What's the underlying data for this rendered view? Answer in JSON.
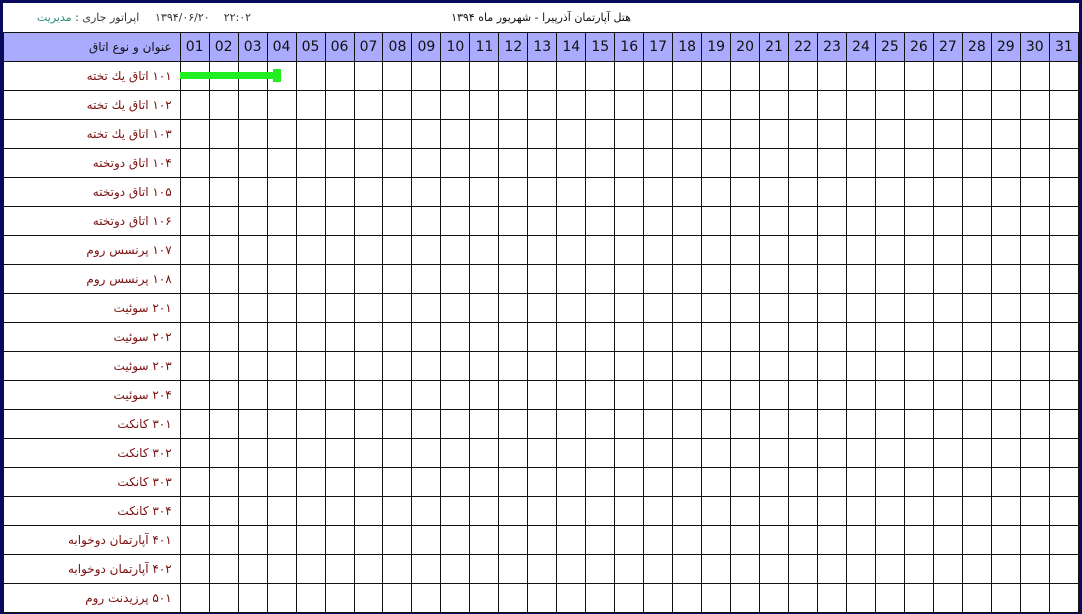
{
  "header": {
    "operator_label": "اپراتور جاری :",
    "operator_role": "مدیریت",
    "date": "۱۳۹۴/۰۶/۲۰",
    "time": "۲۲:۰۲",
    "title": "هتل آپارتمان آذرپیرا - شهریور ماه ۱۳۹۴"
  },
  "grid": {
    "room_column_header": "عنوان و نوع اتاق",
    "days": [
      "01",
      "02",
      "03",
      "04",
      "05",
      "06",
      "07",
      "08",
      "09",
      "10",
      "11",
      "12",
      "13",
      "14",
      "15",
      "16",
      "17",
      "18",
      "19",
      "20",
      "21",
      "22",
      "23",
      "24",
      "25",
      "26",
      "27",
      "28",
      "29",
      "30",
      "31"
    ],
    "rooms": [
      "۱۰۱ اتاق یك تخته",
      "۱۰۲ اتاق یك تخته",
      "۱۰۳ اتاق یك تخته",
      "۱۰۴ اتاق دوتخته",
      "۱۰۵ اتاق دوتخته",
      "۱۰۶ اتاق دوتخته",
      "۱۰۷ پرنسس روم",
      "۱۰۸ پرنسس روم",
      "۲۰۱ سوئیت",
      "۲۰۲ سوئیت",
      "۲۰۳ سوئیت",
      "۲۰۴ سوئیت",
      "۳۰۱ کانکت",
      "۳۰۲ کانکت",
      "۳۰۳ کانکت",
      "۳۰۴ کانکت",
      "۴۰۱ آپارتمان دوخوابه",
      "۴۰۲ آپارتمان دوخوابه",
      "۵۰۱ پرزیدنت روم"
    ]
  },
  "reservations": [
    {
      "room": "۱۰۱ اتاق یك تخته",
      "start_day": 1,
      "end_day": 4,
      "color": "#22ee22"
    }
  ]
}
